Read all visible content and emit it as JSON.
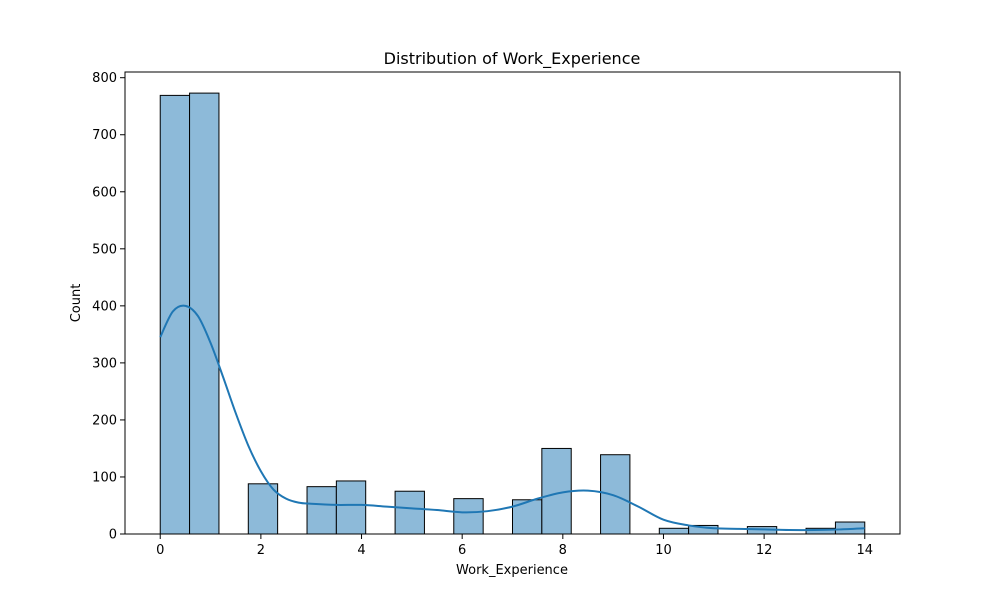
{
  "chart_data": {
    "type": "bar",
    "title": "Distribution of Work_Experience",
    "xlabel": "Work_Experience",
    "ylabel": "Count",
    "xlim": [
      -0.7,
      14.7
    ],
    "ylim": [
      0,
      810
    ],
    "grid": false,
    "xticks": [
      0,
      2,
      4,
      6,
      8,
      10,
      12,
      14
    ],
    "yticks": [
      0,
      100,
      200,
      300,
      400,
      500,
      600,
      700,
      800
    ],
    "bins": [
      {
        "x0": 0.0,
        "x1": 0.583,
        "count": 769
      },
      {
        "x0": 0.583,
        "x1": 1.167,
        "count": 773
      },
      {
        "x0": 1.75,
        "x1": 2.333,
        "count": 88
      },
      {
        "x0": 2.917,
        "x1": 3.5,
        "count": 83
      },
      {
        "x0": 3.5,
        "x1": 4.083,
        "count": 93
      },
      {
        "x0": 4.667,
        "x1": 5.25,
        "count": 75
      },
      {
        "x0": 5.833,
        "x1": 6.417,
        "count": 62
      },
      {
        "x0": 7.0,
        "x1": 7.583,
        "count": 60
      },
      {
        "x0": 7.583,
        "x1": 8.167,
        "count": 150
      },
      {
        "x0": 8.75,
        "x1": 9.333,
        "count": 139
      },
      {
        "x0": 9.917,
        "x1": 10.5,
        "count": 10
      },
      {
        "x0": 10.5,
        "x1": 11.083,
        "count": 15
      },
      {
        "x0": 11.667,
        "x1": 12.25,
        "count": 13
      },
      {
        "x0": 12.833,
        "x1": 13.417,
        "count": 10
      },
      {
        "x0": 13.417,
        "x1": 14.0,
        "count": 21
      }
    ],
    "kde": {
      "x": [
        0,
        0.25,
        0.5,
        0.75,
        1.0,
        1.25,
        1.5,
        1.75,
        2.0,
        2.25,
        2.5,
        2.75,
        3.0,
        3.5,
        4.0,
        4.5,
        5.0,
        5.5,
        6.0,
        6.5,
        7.0,
        7.5,
        8.0,
        8.5,
        9.0,
        9.5,
        10.0,
        10.5,
        11.0,
        11.5,
        12.0,
        12.5,
        13.0,
        13.5,
        14.0
      ],
      "y": [
        345,
        390,
        400,
        382,
        335,
        275,
        212,
        155,
        110,
        78,
        62,
        55,
        53,
        51,
        51,
        48,
        45,
        42,
        38,
        40,
        48,
        62,
        73,
        76,
        68,
        48,
        25,
        15,
        10,
        9,
        8,
        7,
        7,
        8,
        10
      ]
    },
    "colors": {
      "bar_fill": "#8dbad9",
      "bar_edge": "#000000",
      "kde_line": "#1f77b4"
    }
  }
}
